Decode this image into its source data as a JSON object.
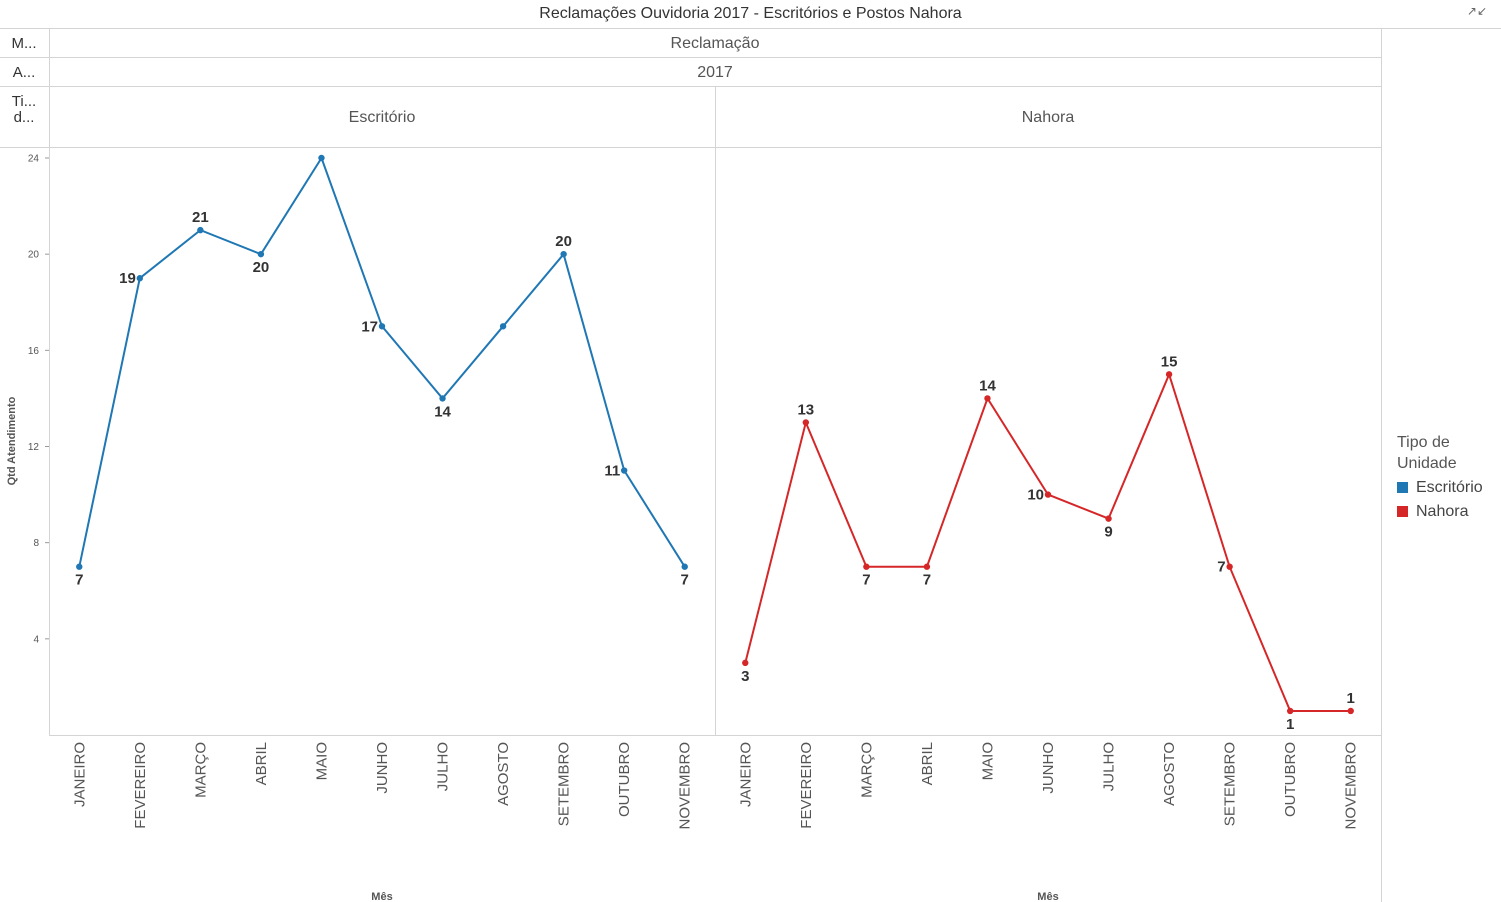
{
  "title": "Reclamações Ouvidoria 2017 - Escritórios e Postos Nahora",
  "header_rows": {
    "row1": {
      "label": "M...",
      "value": "Reclamação"
    },
    "row2": {
      "label": "A...",
      "value": "2017"
    },
    "row3": {
      "label_line1": "Ti...",
      "label_line2": "d..."
    }
  },
  "legend": {
    "title": "Tipo de Unidade",
    "items": [
      {
        "label": "Escritório",
        "color": "#1f77b4"
      },
      {
        "label": "Nahora",
        "color": "#d62728"
      }
    ]
  },
  "chart_data": {
    "type": "line",
    "title": "Reclamações Ouvidoria 2017 - Escritórios e Postos Nahora",
    "xlabel": "Mês",
    "ylabel": "Qtd Atendimento",
    "ylim": [
      0,
      24
    ],
    "yticks": [
      4,
      8,
      12,
      16,
      20,
      24
    ],
    "grid": false,
    "legend_position": "right",
    "categories": [
      "JANEIRO",
      "FEVEREIRO",
      "MARÇO",
      "ABRIL",
      "MAIO",
      "JUNHO",
      "JULHO",
      "AGOSTO",
      "SETEMBRO",
      "OUTUBRO",
      "NOVEMBRO"
    ],
    "panels": [
      {
        "name": "Escritório",
        "color": "#1f77b4",
        "values": [
          7,
          19,
          21,
          20,
          24,
          17,
          14,
          17,
          20,
          11,
          7
        ],
        "data_labels": [
          "7",
          "19",
          "21",
          "20",
          "",
          "17",
          "14",
          "",
          "20",
          "11",
          "7"
        ]
      },
      {
        "name": "Nahora",
        "color": "#d62728",
        "values": [
          3,
          13,
          7,
          7,
          14,
          10,
          9,
          15,
          7,
          1,
          1
        ],
        "data_labels": [
          "3",
          "13",
          "7",
          "7",
          "14",
          "10",
          "9",
          "15",
          "7",
          "1",
          "1"
        ]
      }
    ]
  }
}
